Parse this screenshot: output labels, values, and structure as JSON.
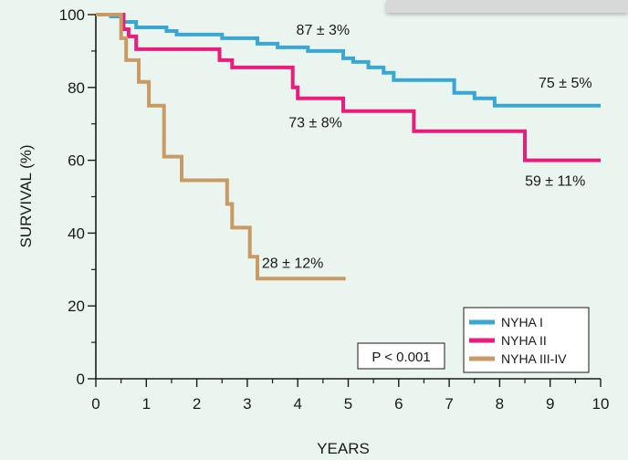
{
  "chart_data": {
    "type": "line",
    "step": true,
    "xlabel": "YEARS",
    "ylabel": "SURVIVAL (%)",
    "xlim": [
      0,
      10
    ],
    "ylim": [
      0,
      100
    ],
    "xticks": [
      "0",
      "1",
      "2",
      "3",
      "4",
      "5",
      "6",
      "7",
      "8",
      "9",
      "10"
    ],
    "yticks": [
      "0",
      "20",
      "40",
      "60",
      "80",
      "100"
    ],
    "grid": false,
    "legend_position": "bottom-right",
    "series": [
      {
        "name": "NYHA I",
        "color": "#3aa6d4",
        "points": [
          [
            0,
            100
          ],
          [
            0.3,
            99.5
          ],
          [
            0.55,
            98
          ],
          [
            0.8,
            96.5
          ],
          [
            1.4,
            95.5
          ],
          [
            1.6,
            94.5
          ],
          [
            2.5,
            93.5
          ],
          [
            3.2,
            92
          ],
          [
            3.6,
            91
          ],
          [
            4.2,
            90
          ],
          [
            4.9,
            88
          ],
          [
            5.1,
            87
          ],
          [
            5.4,
            85.5
          ],
          [
            5.7,
            84
          ],
          [
            5.9,
            82
          ],
          [
            7.1,
            78.5
          ],
          [
            7.5,
            77
          ],
          [
            7.9,
            75
          ],
          [
            10,
            75
          ]
        ]
      },
      {
        "name": "NYHA II",
        "color": "#ec1c7c",
        "points": [
          [
            0,
            100
          ],
          [
            0.55,
            96
          ],
          [
            0.65,
            94
          ],
          [
            0.8,
            90.5
          ],
          [
            2.45,
            87.5
          ],
          [
            2.7,
            85.5
          ],
          [
            3.9,
            80
          ],
          [
            4.0,
            77
          ],
          [
            4.9,
            73.5
          ],
          [
            6.3,
            68
          ],
          [
            8.5,
            60
          ],
          [
            10,
            60
          ]
        ]
      },
      {
        "name": "NYHA III-IV",
        "color": "#c99a64",
        "points": [
          [
            0,
            100
          ],
          [
            0.5,
            93.5
          ],
          [
            0.6,
            87.5
          ],
          [
            0.85,
            81.5
          ],
          [
            1.05,
            75
          ],
          [
            1.35,
            61
          ],
          [
            1.7,
            54.5
          ],
          [
            2.6,
            48
          ],
          [
            2.7,
            41.5
          ],
          [
            3.05,
            33.5
          ],
          [
            3.2,
            27.5
          ],
          [
            4.95,
            27.5
          ]
        ]
      }
    ],
    "annotations": [
      {
        "text": "87 ± 3%",
        "x": 4.5,
        "y": 94.5
      },
      {
        "text": "75 ± 5%",
        "x": 9.3,
        "y": 80
      },
      {
        "text": "73 ± 8%",
        "x": 4.35,
        "y": 69
      },
      {
        "text": "59 ± 11%",
        "x": 9.1,
        "y": 53
      },
      {
        "text": "28 ± 12%",
        "x": 3.9,
        "y": 30.5
      }
    ],
    "pvalue": "P < 0.001"
  }
}
